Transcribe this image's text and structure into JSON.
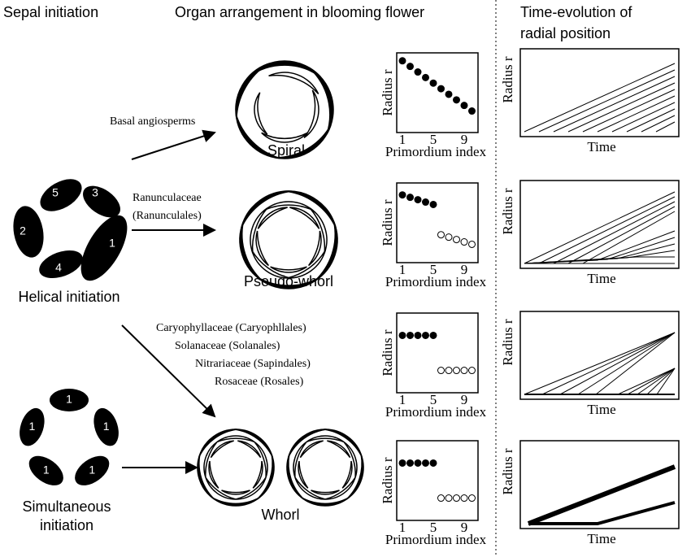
{
  "headers": [
    "Sepal initiation",
    "Organ arrangement in blooming flower",
    "Time-evolution of",
    "radial position"
  ],
  "pathways": [
    "Basal angiosperms",
    "Ranunculaceae",
    "(Ranunculales)",
    "Caryophyllaceae (Caryophllales)",
    "Solanaceae (Solanales)",
    "Nitrariaceae (Sapindales)",
    "Rosaceae (Rosales)"
  ],
  "arrangements": [
    "Spiral",
    "Pseudo-whorl",
    "Whorl"
  ],
  "initiations": [
    "Helical initiation",
    "Simultaneous",
    "initiation"
  ],
  "helical_sepal_labels": [
    5,
    3,
    2,
    1,
    4
  ],
  "simultaneous_sepal_labels": [
    1,
    1,
    1,
    1,
    1
  ],
  "index_plots": {
    "y_label": "Radius r",
    "x_label": "Primordium index",
    "x_ticks": [
      1,
      5,
      9
    ]
  },
  "time_plots": {
    "y_label": "Radius r",
    "x_label": "Time"
  }
}
